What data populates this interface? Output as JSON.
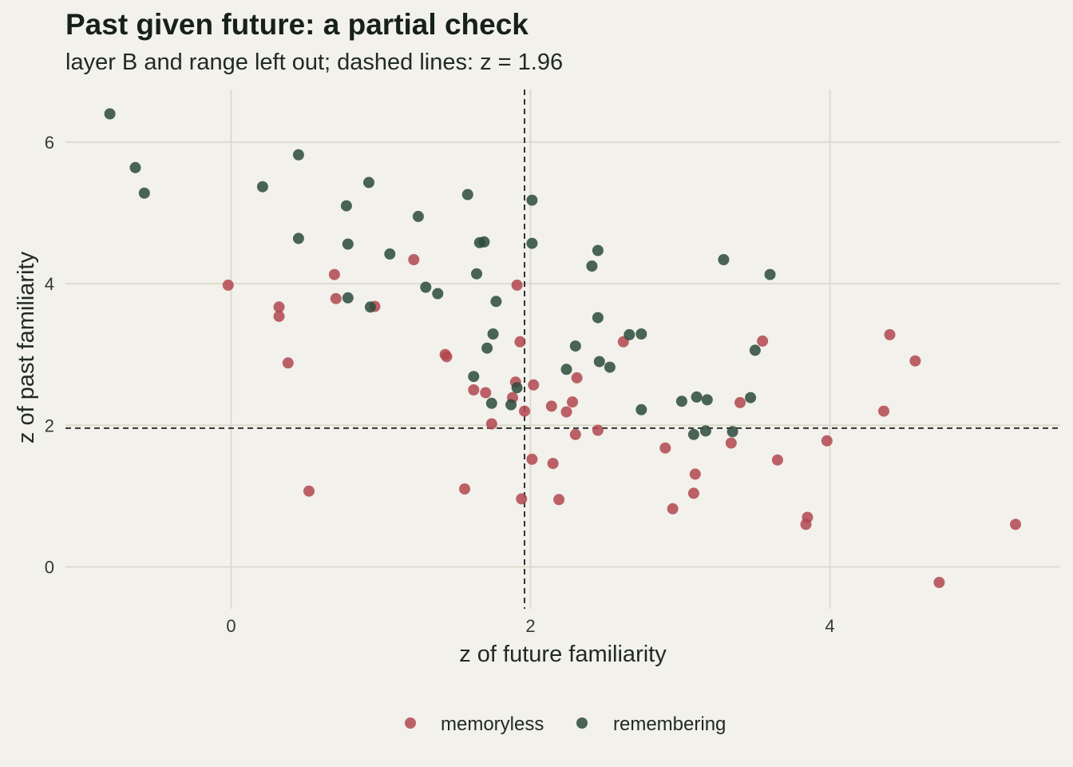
{
  "chart_data": {
    "type": "scatter",
    "title": "Past given future: a partial check",
    "subtitle": "layer B and range left out; dashed lines: z = 1.96",
    "xlabel": "z of future familiarity",
    "ylabel": "z of past familiarity",
    "xlim": [
      -1.1,
      5.5
    ],
    "ylim": [
      -0.6,
      6.7
    ],
    "xticks": [
      0,
      2,
      4
    ],
    "yticks": [
      0,
      2,
      4,
      6
    ],
    "grid": true,
    "reference_lines": {
      "x": 1.96,
      "y": 1.96,
      "style": "dashed"
    },
    "legend_position": "bottom",
    "colors": {
      "memoryless": "#b2474f",
      "remembering": "#2c4a3b",
      "background": "#f2f1eb",
      "grid": "#d8d7c8",
      "reference": "#333333"
    },
    "series": [
      {
        "name": "memoryless",
        "color": "#b2474f",
        "points": [
          [
            -0.02,
            3.98
          ],
          [
            0.32,
            3.67
          ],
          [
            0.32,
            3.54
          ],
          [
            0.38,
            2.88
          ],
          [
            0.52,
            1.07
          ],
          [
            0.69,
            4.13
          ],
          [
            0.7,
            3.79
          ],
          [
            0.96,
            3.68
          ],
          [
            1.22,
            4.34
          ],
          [
            1.43,
            3.0
          ],
          [
            1.44,
            2.97
          ],
          [
            1.56,
            1.1
          ],
          [
            1.62,
            2.5
          ],
          [
            1.7,
            2.46
          ],
          [
            1.74,
            2.02
          ],
          [
            1.88,
            2.39
          ],
          [
            1.9,
            2.61
          ],
          [
            1.91,
            3.98
          ],
          [
            1.93,
            3.18
          ],
          [
            1.94,
            0.96
          ],
          [
            1.96,
            2.2
          ],
          [
            2.01,
            1.52
          ],
          [
            2.02,
            2.57
          ],
          [
            2.14,
            2.27
          ],
          [
            2.15,
            1.46
          ],
          [
            2.19,
            0.95
          ],
          [
            2.24,
            2.19
          ],
          [
            2.28,
            2.33
          ],
          [
            2.3,
            1.87
          ],
          [
            2.31,
            2.67
          ],
          [
            2.45,
            1.93
          ],
          [
            2.62,
            3.18
          ],
          [
            2.9,
            1.68
          ],
          [
            2.95,
            0.82
          ],
          [
            3.09,
            1.04
          ],
          [
            3.1,
            1.31
          ],
          [
            3.34,
            1.75
          ],
          [
            3.4,
            2.32
          ],
          [
            3.55,
            3.19
          ],
          [
            3.65,
            1.51
          ],
          [
            3.84,
            0.6
          ],
          [
            3.85,
            0.7
          ],
          [
            3.98,
            1.78
          ],
          [
            4.36,
            2.2
          ],
          [
            4.4,
            3.28
          ],
          [
            4.57,
            2.91
          ],
          [
            4.73,
            -0.22
          ],
          [
            5.24,
            0.6
          ]
        ]
      },
      {
        "name": "remembering",
        "color": "#2c4a3b",
        "points": [
          [
            -0.81,
            6.4
          ],
          [
            -0.64,
            5.64
          ],
          [
            -0.58,
            5.28
          ],
          [
            0.21,
            5.37
          ],
          [
            0.45,
            5.82
          ],
          [
            0.45,
            4.64
          ],
          [
            0.77,
            5.1
          ],
          [
            0.78,
            4.56
          ],
          [
            0.78,
            3.8
          ],
          [
            0.92,
            5.43
          ],
          [
            0.93,
            3.67
          ],
          [
            1.06,
            4.42
          ],
          [
            1.25,
            4.95
          ],
          [
            1.3,
            3.95
          ],
          [
            1.38,
            3.86
          ],
          [
            1.58,
            5.26
          ],
          [
            1.62,
            2.69
          ],
          [
            1.64,
            4.14
          ],
          [
            1.66,
            4.58
          ],
          [
            1.69,
            4.59
          ],
          [
            1.71,
            3.09
          ],
          [
            1.74,
            2.31
          ],
          [
            1.75,
            3.29
          ],
          [
            1.77,
            3.75
          ],
          [
            1.87,
            2.29
          ],
          [
            1.91,
            2.53
          ],
          [
            2.01,
            5.18
          ],
          [
            2.01,
            4.57
          ],
          [
            2.24,
            2.79
          ],
          [
            2.3,
            3.12
          ],
          [
            2.41,
            4.25
          ],
          [
            2.45,
            4.47
          ],
          [
            2.45,
            3.52
          ],
          [
            2.46,
            2.9
          ],
          [
            2.53,
            2.82
          ],
          [
            2.66,
            3.28
          ],
          [
            2.74,
            3.29
          ],
          [
            2.74,
            2.22
          ],
          [
            3.01,
            2.34
          ],
          [
            3.09,
            1.87
          ],
          [
            3.11,
            2.4
          ],
          [
            3.17,
            1.92
          ],
          [
            3.18,
            2.36
          ],
          [
            3.29,
            4.34
          ],
          [
            3.35,
            1.91
          ],
          [
            3.47,
            2.39
          ],
          [
            3.5,
            3.06
          ],
          [
            3.6,
            4.13
          ]
        ]
      }
    ]
  }
}
